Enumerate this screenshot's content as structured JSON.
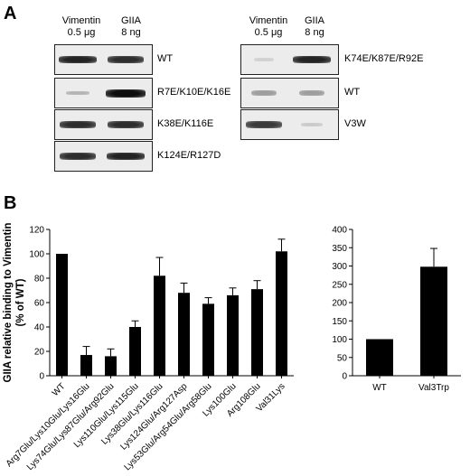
{
  "panel_a": {
    "letter": "A",
    "left": {
      "lanes": [
        {
          "line1": "Vimentin",
          "line2": "0.5 μg"
        },
        {
          "line1": "GIIA",
          "line2": "8 ng"
        }
      ],
      "blots": [
        {
          "label": "WT",
          "bands": [
            0.9,
            0.85
          ]
        },
        {
          "label": "R7E/K10E/K16E",
          "bands": [
            0.25,
            1.0
          ]
        },
        {
          "label": "K38E/K116E",
          "bands": [
            0.85,
            0.85
          ]
        },
        {
          "label": "K124E/R127D",
          "bands": [
            0.85,
            0.9
          ]
        }
      ]
    },
    "right": {
      "lanes": [
        {
          "line1": "Vimentin",
          "line2": "0.5 μg"
        },
        {
          "line1": "GIIA",
          "line2": "8 ng"
        }
      ],
      "blots": [
        {
          "label": "K74E/K87E/R92E",
          "bands": [
            0.05,
            0.9
          ]
        },
        {
          "label": "WT",
          "bands": [
            0.35,
            0.35
          ]
        },
        {
          "label": "V3W",
          "bands": [
            0.8,
            0.15
          ]
        }
      ]
    }
  },
  "panel_b": {
    "letter": "B",
    "ylabel_line1": "GIIA relative binding to Vimentin",
    "ylabel_line2": "(% of WT)"
  },
  "chart_data": [
    {
      "type": "bar",
      "categories": [
        "WT",
        "Arg7Glu/Lys10Glu/Lys16Glu",
        "Lys74Glu/Lys87Glu/Arg92Glu",
        "Lys110Glu/Lys115Glu",
        "Lys38Glu/Lys116Glu",
        "Lys124Glu/Arg127Asp",
        "Lys53Glu/Arg54Glu/Arg58Glu",
        "Lys100Glu",
        "Arg108Glu",
        "Val31Lys"
      ],
      "values": [
        100,
        17,
        16,
        40,
        82,
        68,
        59,
        66,
        71,
        102
      ],
      "errors": [
        0,
        7,
        6,
        5,
        15,
        8,
        5,
        6,
        7,
        10
      ],
      "ylabel": "GIIA relative binding to Vimentin (% of WT)",
      "ylim": [
        0,
        120
      ],
      "yticks": [
        0,
        20,
        40,
        60,
        80,
        100,
        120
      ]
    },
    {
      "type": "bar",
      "categories": [
        "WT",
        "Val3Trp"
      ],
      "values": [
        100,
        298
      ],
      "errors": [
        0,
        50
      ],
      "ylim": [
        0,
        400
      ],
      "yticks": [
        0,
        50,
        100,
        150,
        200,
        250,
        300,
        350,
        400
      ]
    }
  ]
}
